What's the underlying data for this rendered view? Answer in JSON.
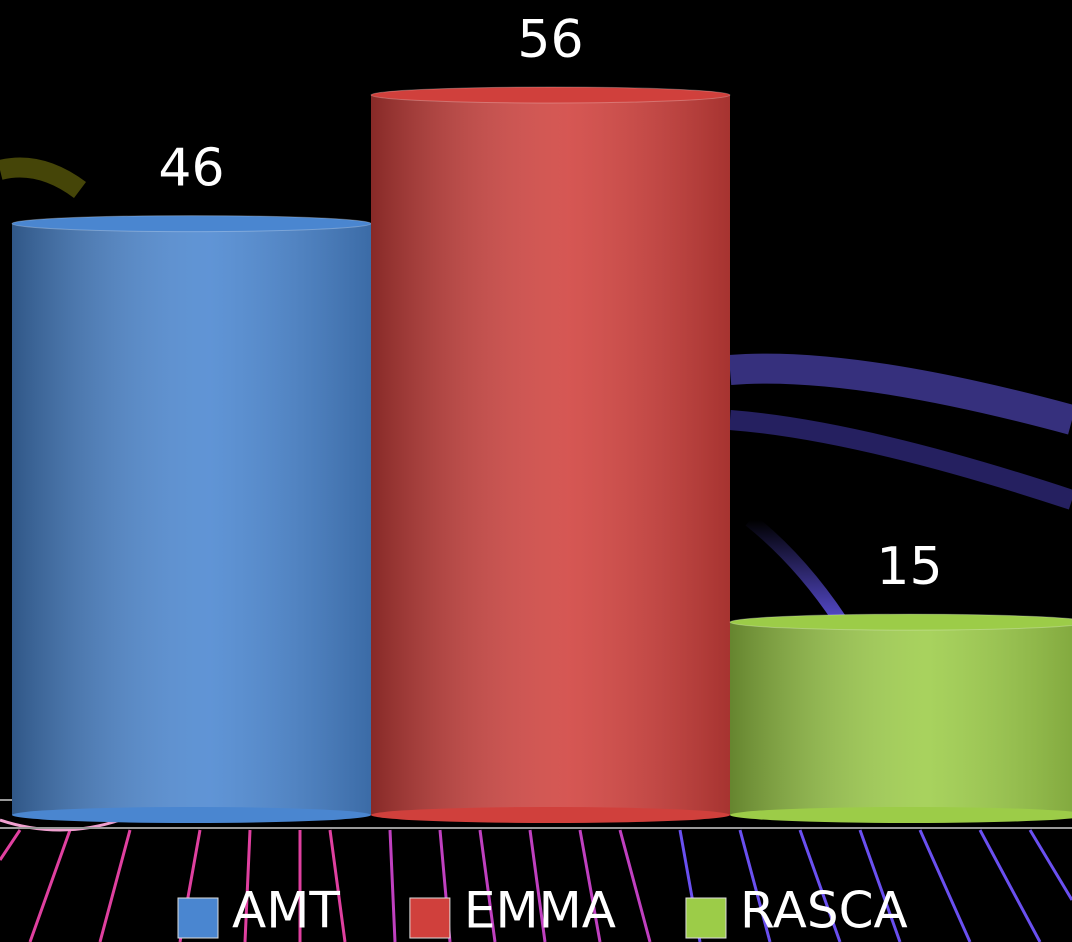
{
  "chart_data": {
    "type": "bar",
    "series": [
      {
        "name": "AMT",
        "color": "#4a86d0",
        "values": [
          46
        ]
      },
      {
        "name": "EMMA",
        "color": "#d0403c",
        "values": [
          56
        ]
      },
      {
        "name": "RASCA",
        "color": "#9ccc48",
        "values": [
          15
        ]
      }
    ]
  }
}
